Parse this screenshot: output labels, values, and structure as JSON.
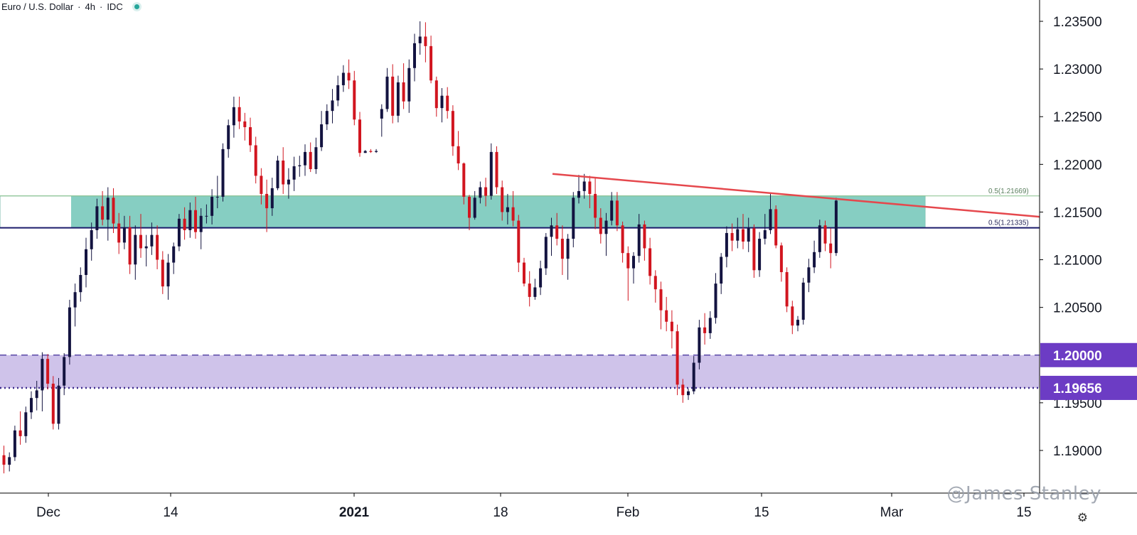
{
  "header": {
    "symbol": "Euro / U.S. Dollar",
    "sep1": "·",
    "interval": "4h",
    "sep2": "·",
    "source": "IDC"
  },
  "watermark": "@James Stanley",
  "icons": {
    "settings": "gear-icon",
    "status": "status-dot-icon"
  },
  "colors": {
    "up_candle": "#131340",
    "down_candle": "#d1151f",
    "resistance_zone": "#7fcbbf",
    "support_zone": "#cfc3ea",
    "trendline": "#e5484d",
    "level_line": "#1b1b6b",
    "price_badge": "#6c3cc4"
  },
  "chart_data": {
    "type": "candlestick",
    "title": "Euro / U.S. Dollar · 4h · IDC",
    "x_tick_labels": [
      "Dec",
      "14",
      "2021",
      "18",
      "Feb",
      "15",
      "Mar",
      "15"
    ],
    "y_tick_labels": [
      "1.23500",
      "1.23000",
      "1.22500",
      "1.22000",
      "1.21500",
      "1.21000",
      "1.20500",
      "1.19500",
      "1.19000"
    ],
    "ylim": [
      1.1875,
      1.2365
    ],
    "price_labels": [
      "1.20000",
      "1.19656"
    ],
    "zone_labels": [
      "0.5(1.21669)",
      "0.5(1.21335)"
    ],
    "zones": [
      {
        "name": "resistance",
        "low": 1.21335,
        "high": 1.21669
      },
      {
        "name": "support",
        "low": 1.19656,
        "high": 1.2
      }
    ],
    "levels": [
      1.21335,
      1.21669,
      1.2,
      1.19656
    ],
    "trendline": {
      "from": [
        "2021-01-22",
        1.219
      ],
      "to": [
        "2021-03-06",
        1.2145
      ]
    },
    "grid": false,
    "candles": [
      [
        1.1895,
        1.1905,
        1.1876,
        1.1885
      ],
      [
        1.1885,
        1.1898,
        1.1878,
        1.1893
      ],
      [
        1.1893,
        1.1926,
        1.1889,
        1.1921
      ],
      [
        1.1921,
        1.1941,
        1.1906,
        1.1915
      ],
      [
        1.1915,
        1.1946,
        1.1908,
        1.194
      ],
      [
        1.194,
        1.1962,
        1.1933,
        1.1955
      ],
      [
        1.1955,
        1.1973,
        1.1942,
        1.1963
      ],
      [
        1.1963,
        1.2003,
        1.1941,
        1.1996
      ],
      [
        1.1996,
        1.2001,
        1.1964,
        1.197
      ],
      [
        1.197,
        1.1978,
        1.1922,
        1.1928
      ],
      [
        1.1928,
        1.1976,
        1.1922,
        1.1968
      ],
      [
        1.1968,
        1.2002,
        1.1958,
        1.1998
      ],
      [
        1.1998,
        1.2058,
        1.199,
        1.205
      ],
      [
        1.205,
        1.2075,
        1.203,
        1.2066
      ],
      [
        1.2066,
        1.2092,
        1.2056,
        1.2084
      ],
      [
        1.2084,
        1.2123,
        1.2071,
        1.2111
      ],
      [
        1.2111,
        1.2139,
        1.2099,
        1.2131
      ],
      [
        1.2131,
        1.2164,
        1.2122,
        1.2156
      ],
      [
        1.2156,
        1.2172,
        1.2136,
        1.2142
      ],
      [
        1.2142,
        1.2176,
        1.212,
        1.2165
      ],
      [
        1.2165,
        1.2175,
        1.2128,
        1.2138
      ],
      [
        1.2138,
        1.2149,
        1.2106,
        1.2118
      ],
      [
        1.2118,
        1.2146,
        1.2111,
        1.2134
      ],
      [
        1.2134,
        1.2146,
        1.2085,
        1.2095
      ],
      [
        1.2095,
        1.2136,
        1.2079,
        1.2126
      ],
      [
        1.2126,
        1.2148,
        1.2102,
        1.2112
      ],
      [
        1.2112,
        1.2126,
        1.2093,
        1.2114
      ],
      [
        1.2114,
        1.2139,
        1.2105,
        1.2126
      ],
      [
        1.2126,
        1.2136,
        1.209,
        1.21
      ],
      [
        1.21,
        1.2109,
        1.2064,
        1.2072
      ],
      [
        1.2072,
        1.2106,
        1.2058,
        1.2097
      ],
      [
        1.2097,
        1.2118,
        1.2085,
        1.2114
      ],
      [
        1.2114,
        1.2148,
        1.2109,
        1.2143
      ],
      [
        1.2143,
        1.2155,
        1.2121,
        1.2131
      ],
      [
        1.2131,
        1.216,
        1.2123,
        1.2152
      ],
      [
        1.2152,
        1.2166,
        1.2122,
        1.2129
      ],
      [
        1.2129,
        1.2154,
        1.2111,
        1.2146
      ],
      [
        1.2146,
        1.2158,
        1.2138,
        1.2146
      ],
      [
        1.2146,
        1.2174,
        1.2137,
        1.2166
      ],
      [
        1.2166,
        1.2188,
        1.2154,
        1.2166
      ],
      [
        1.2166,
        1.2222,
        1.2161,
        1.2216
      ],
      [
        1.2216,
        1.2247,
        1.2207,
        1.2241
      ],
      [
        1.2241,
        1.2271,
        1.2228,
        1.226
      ],
      [
        1.226,
        1.2271,
        1.2237,
        1.2245
      ],
      [
        1.2245,
        1.2254,
        1.2225,
        1.2239
      ],
      [
        1.2239,
        1.2249,
        1.2213,
        1.222
      ],
      [
        1.222,
        1.2229,
        1.218,
        1.2188
      ],
      [
        1.2188,
        1.2196,
        1.2158,
        1.2169
      ],
      [
        1.2169,
        1.2184,
        1.2129,
        1.2154
      ],
      [
        1.2154,
        1.2186,
        1.2146,
        1.2175
      ],
      [
        1.2175,
        1.2209,
        1.2173,
        1.2204
      ],
      [
        1.2204,
        1.2218,
        1.2169,
        1.2179
      ],
      [
        1.2179,
        1.2196,
        1.2164,
        1.2184
      ],
      [
        1.2184,
        1.2208,
        1.2172,
        1.2198
      ],
      [
        1.2198,
        1.2209,
        1.2187,
        1.2199
      ],
      [
        1.2199,
        1.2221,
        1.2188,
        1.2213
      ],
      [
        1.2213,
        1.2223,
        1.2192,
        1.2195
      ],
      [
        1.2195,
        1.2228,
        1.219,
        1.2218
      ],
      [
        1.2218,
        1.2256,
        1.2214,
        1.2242
      ],
      [
        1.2242,
        1.2263,
        1.2236,
        1.2256
      ],
      [
        1.2256,
        1.2279,
        1.2243,
        1.2267
      ],
      [
        1.2267,
        1.2293,
        1.2261,
        1.2283
      ],
      [
        1.2283,
        1.2304,
        1.2276,
        1.2296
      ],
      [
        1.2296,
        1.231,
        1.2279,
        1.2288
      ],
      [
        1.2288,
        1.2298,
        1.2241,
        1.2247
      ],
      [
        1.2247,
        1.2255,
        1.2208,
        1.2212
      ],
      [
        1.2212,
        1.2215,
        1.2212,
        1.2214
      ],
      [
        1.2214,
        1.2216,
        1.2212,
        1.2213
      ],
      [
        1.2213,
        1.2216,
        1.2212,
        1.2214
      ],
      [
        1.2248,
        1.2263,
        1.2229,
        1.2258
      ],
      [
        1.2258,
        1.2301,
        1.2255,
        1.2292
      ],
      [
        1.2292,
        1.2305,
        1.2243,
        1.2251
      ],
      [
        1.2251,
        1.2293,
        1.2244,
        1.2286
      ],
      [
        1.2286,
        1.2306,
        1.2258,
        1.2266
      ],
      [
        1.2266,
        1.231,
        1.2254,
        1.2301
      ],
      [
        1.2301,
        1.2337,
        1.2287,
        1.2327
      ],
      [
        1.2327,
        1.235,
        1.2315,
        1.2334
      ],
      [
        1.2334,
        1.2349,
        1.2307,
        1.2324
      ],
      [
        1.2324,
        1.2335,
        1.2285,
        1.2288
      ],
      [
        1.2288,
        1.2292,
        1.225,
        1.2259
      ],
      [
        1.2259,
        1.228,
        1.2244,
        1.2272
      ],
      [
        1.2272,
        1.2281,
        1.2248,
        1.2256
      ],
      [
        1.2256,
        1.2262,
        1.2209,
        1.2219
      ],
      [
        1.2219,
        1.2235,
        1.2194,
        1.2201
      ],
      [
        1.2201,
        1.2202,
        1.2158,
        1.2166
      ],
      [
        1.2166,
        1.2168,
        1.2131,
        1.2144
      ],
      [
        1.2144,
        1.2172,
        1.2142,
        1.2165
      ],
      [
        1.2165,
        1.2182,
        1.2159,
        1.2176
      ],
      [
        1.2176,
        1.2186,
        1.2156,
        1.2167
      ],
      [
        1.2167,
        1.2222,
        1.2163,
        1.2213
      ],
      [
        1.2213,
        1.2219,
        1.2169,
        1.2176
      ],
      [
        1.2176,
        1.2183,
        1.2141,
        1.215
      ],
      [
        1.215,
        1.2169,
        1.2137,
        1.2155
      ],
      [
        1.2155,
        1.2172,
        1.2135,
        1.2141
      ],
      [
        1.2141,
        1.2147,
        1.2087,
        1.2097
      ],
      [
        1.2097,
        1.2102,
        1.2072,
        1.2075
      ],
      [
        1.2075,
        1.2088,
        1.2051,
        1.2061
      ],
      [
        1.2061,
        1.208,
        1.2058,
        1.2071
      ],
      [
        1.2071,
        1.2099,
        1.2063,
        1.2091
      ],
      [
        1.2091,
        1.2128,
        1.2084,
        1.2124
      ],
      [
        1.2124,
        1.2144,
        1.2104,
        1.2136
      ],
      [
        1.2136,
        1.2149,
        1.2115,
        1.2122
      ],
      [
        1.2122,
        1.2136,
        1.2084,
        1.2101
      ],
      [
        1.2101,
        1.2127,
        1.2079,
        1.2122
      ],
      [
        1.2122,
        1.2171,
        1.2113,
        1.2165
      ],
      [
        1.2165,
        1.2189,
        1.2159,
        1.2172
      ],
      [
        1.2172,
        1.219,
        1.2164,
        1.2182
      ],
      [
        1.2182,
        1.2188,
        1.2154,
        1.2169
      ],
      [
        1.2169,
        1.2186,
        1.2132,
        1.2144
      ],
      [
        1.2144,
        1.2154,
        1.2117,
        1.2127
      ],
      [
        1.2127,
        1.2149,
        1.2104,
        1.2141
      ],
      [
        1.2141,
        1.2171,
        1.2136,
        1.2162
      ],
      [
        1.2162,
        1.2171,
        1.213,
        1.2136
      ],
      [
        1.2136,
        1.214,
        1.2097,
        1.2107
      ],
      [
        1.2107,
        1.2114,
        1.2057,
        1.2091
      ],
      [
        1.2091,
        1.2108,
        1.2075,
        1.2104
      ],
      [
        1.2104,
        1.2148,
        1.2097,
        1.2137
      ],
      [
        1.2137,
        1.2141,
        1.2099,
        1.2112
      ],
      [
        1.2112,
        1.2123,
        1.2074,
        1.2083
      ],
      [
        1.2083,
        1.2089,
        1.2055,
        1.2069
      ],
      [
        1.2069,
        1.2077,
        1.2027,
        1.2047
      ],
      [
        1.2047,
        1.2061,
        1.2025,
        1.2035
      ],
      [
        1.2035,
        1.2047,
        1.2007,
        1.2025
      ],
      [
        1.2025,
        1.2032,
        1.1958,
        1.1969
      ],
      [
        1.1969,
        1.1975,
        1.195,
        1.1958
      ],
      [
        1.1958,
        1.1965,
        1.1953,
        1.1962
      ],
      [
        1.1962,
        1.1999,
        1.1959,
        1.1992
      ],
      [
        1.1992,
        1.2037,
        1.1985,
        1.2029
      ],
      [
        1.2029,
        1.2044,
        1.2011,
        1.2023
      ],
      [
        1.2023,
        1.2046,
        1.2017,
        1.2039
      ],
      [
        1.2039,
        1.2086,
        1.2033,
        1.2075
      ],
      [
        1.2075,
        1.2107,
        1.2064,
        1.2103
      ],
      [
        1.2103,
        1.2135,
        1.2092,
        1.2128
      ],
      [
        1.2128,
        1.2138,
        1.2109,
        1.212
      ],
      [
        1.212,
        1.2144,
        1.2112,
        1.2132
      ],
      [
        1.2132,
        1.2148,
        1.2111,
        1.2119
      ],
      [
        1.2119,
        1.2144,
        1.2108,
        1.2133
      ],
      [
        1.2133,
        1.2137,
        1.2081,
        1.2089
      ],
      [
        1.2089,
        1.2129,
        1.2082,
        1.2122
      ],
      [
        1.2122,
        1.2148,
        1.2116,
        1.2131
      ],
      [
        1.2131,
        1.2169,
        1.2127,
        1.2153
      ],
      [
        1.2153,
        1.2157,
        1.2112,
        1.2115
      ],
      [
        1.2115,
        1.2118,
        1.2077,
        1.2087
      ],
      [
        1.2087,
        1.2092,
        1.2045,
        1.2051
      ],
      [
        1.2051,
        1.2057,
        1.2022,
        1.2031
      ],
      [
        1.2031,
        1.2041,
        1.2025,
        1.2037
      ],
      [
        1.2037,
        1.2081,
        1.2032,
        1.2076
      ],
      [
        1.2076,
        1.2101,
        1.2066,
        1.2092
      ],
      [
        1.2092,
        1.212,
        1.2086,
        1.2108
      ],
      [
        1.2108,
        1.2142,
        1.2102,
        1.2136
      ],
      [
        1.2136,
        1.2141,
        1.2109,
        1.2117
      ],
      [
        1.2117,
        1.2133,
        1.2091,
        1.2107
      ],
      [
        1.2107,
        1.2165,
        1.2104,
        1.2162
      ]
    ]
  }
}
